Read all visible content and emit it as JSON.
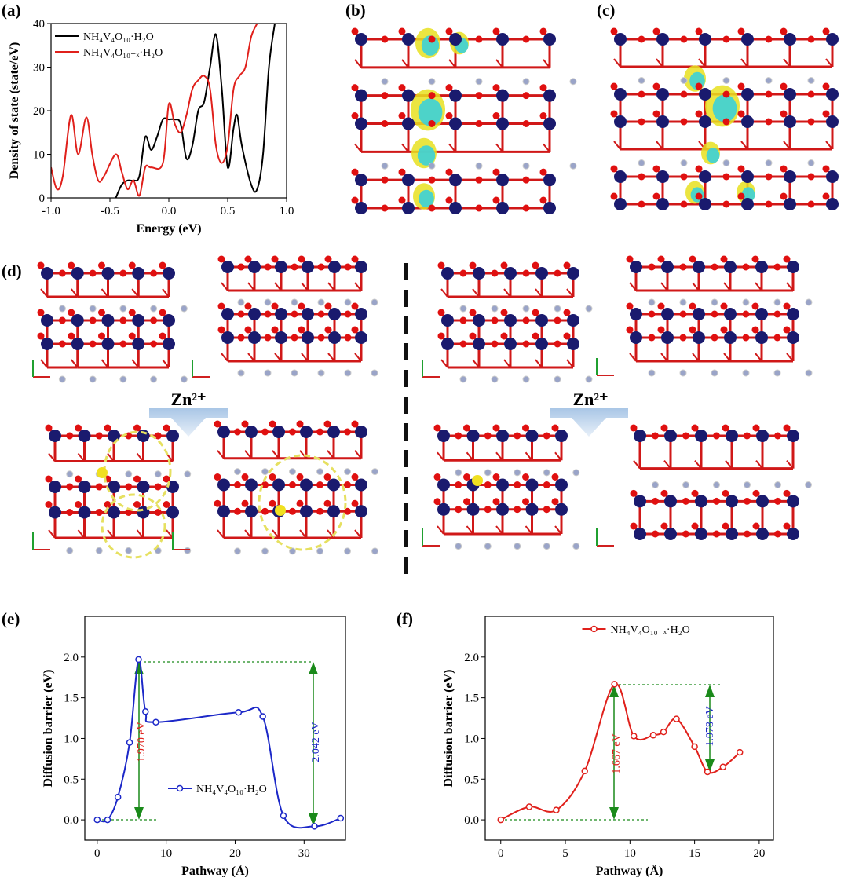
{
  "chart_data": [
    {
      "type": "line",
      "panel": "(a)",
      "xlabel": "Energy (eV)",
      "ylabel": "Density of state (state/eV)",
      "xlim": [
        -1,
        1
      ],
      "ylim": [
        0,
        40
      ],
      "xticks": [
        {
          "value": -1,
          "label": "-1.0"
        },
        {
          "value": -0.5,
          "label": "-0.5"
        },
        {
          "value": 0,
          "label": "0.0"
        },
        {
          "value": 0.5,
          "label": "0.5"
        },
        {
          "value": 1,
          "label": "1.0"
        }
      ],
      "yticks": [
        0,
        10,
        20,
        30,
        40
      ],
      "legend": "upper left",
      "markers": false,
      "series": [
        {
          "name": "NH₄V₄O₁₀·H₂O",
          "color": "#000000",
          "x": [
            -0.45,
            -0.4,
            -0.35,
            -0.3,
            -0.25,
            -0.2,
            -0.15,
            -0.1,
            -0.05,
            0,
            0.05,
            0.1,
            0.15,
            0.2,
            0.25,
            0.3,
            0.35,
            0.4,
            0.45,
            0.5,
            0.55,
            0.58,
            0.62,
            0.7,
            0.75,
            0.8,
            0.85,
            0.9
          ],
          "values": [
            0,
            3,
            4,
            4,
            5,
            14,
            11,
            14,
            18,
            18,
            18,
            17,
            9,
            12,
            20,
            22,
            30,
            37.5,
            25,
            7,
            16,
            19,
            12,
            3,
            2,
            10,
            30,
            40
          ]
        },
        {
          "name": "NH₄V₄O₁₀₋ₓ·H₂O",
          "color": "#e0201b",
          "x": [
            -1,
            -0.95,
            -0.9,
            -0.83,
            -0.77,
            -0.7,
            -0.65,
            -0.6,
            -0.55,
            -0.45,
            -0.4,
            -0.35,
            -0.3,
            -0.25,
            -0.2,
            -0.15,
            -0.05,
            0,
            0.05,
            0.1,
            0.15,
            0.2,
            0.25,
            0.3,
            0.35,
            0.4,
            0.45,
            0.5,
            0.55,
            0.6,
            0.65,
            0.7,
            0.75
          ],
          "values": [
            7,
            2,
            5,
            19,
            10,
            18.5,
            10,
            4,
            5,
            10,
            6,
            2,
            4,
            0.5,
            7,
            7,
            8,
            21.5,
            17,
            15,
            19,
            25,
            27,
            28,
            25,
            12,
            8,
            12,
            25,
            28,
            30,
            37,
            40
          ]
        }
      ]
    },
    {
      "type": "line",
      "panel": "(e)",
      "xlabel": "Pathway (Å)",
      "ylabel": "Diffusion barrier (eV)",
      "xlim": [
        -1.8,
        36
      ],
      "ylim": [
        -0.25,
        2.5
      ],
      "xticks": [
        0,
        10,
        20,
        30
      ],
      "yticks": [
        {
          "value": 0,
          "label": "0.0"
        },
        {
          "value": 0.5,
          "label": "0.5"
        },
        {
          "value": 1,
          "label": "1.0"
        },
        {
          "value": 1.5,
          "label": "1.5"
        },
        {
          "value": 2,
          "label": "2.0"
        }
      ],
      "legend": "lower center",
      "markers": true,
      "annotations": [
        "1.970 eV",
        "2.042 eV"
      ],
      "series": [
        {
          "name": "NH₄V₄O₁₀·H₂O",
          "color": "#1c28c8",
          "x": [
            0,
            1.5,
            3,
            4.7,
            6,
            7,
            8.5,
            20.5,
            24,
            27,
            31.5,
            35.3
          ],
          "values": [
            0,
            0,
            0.28,
            0.95,
            1.97,
            1.33,
            1.2,
            1.32,
            1.27,
            0.05,
            -0.08,
            0.02
          ]
        }
      ]
    },
    {
      "type": "line",
      "panel": "(f)",
      "xlabel": "Pathway (Å)",
      "ylabel": "Diffusion barrier (eV)",
      "xlim": [
        -1.2,
        21.1
      ],
      "ylim": [
        -0.25,
        2.5
      ],
      "xticks": [
        0,
        5,
        10,
        15,
        20
      ],
      "yticks": [
        {
          "value": 0,
          "label": "0.0"
        },
        {
          "value": 0.5,
          "label": "0.5"
        },
        {
          "value": 1,
          "label": "1.0"
        },
        {
          "value": 1.5,
          "label": "1.5"
        },
        {
          "value": 2,
          "label": "2.0"
        }
      ],
      "legend": "upper center",
      "markers": true,
      "annotations": [
        "1.667 eV",
        "1.078 eV"
      ],
      "series": [
        {
          "name": "NH₄V₄O₁₀₋ₓ·H₂O",
          "color": "#e0201b",
          "x": [
            0,
            2.2,
            4.3,
            6.5,
            8.8,
            10.3,
            11.8,
            12.6,
            13.6,
            15,
            16,
            17.2,
            18.5
          ],
          "values": [
            0,
            0.16,
            0.12,
            0.6,
            1.667,
            1.03,
            1.04,
            1.08,
            1.24,
            0.9,
            0.59,
            0.65,
            0.83
          ]
        }
      ]
    }
  ],
  "images": [
    {
      "label": "(b)"
    },
    {
      "label": "(c)"
    },
    {
      "label": "(d)",
      "annotations": [
        "Zn²⁺",
        "Zn²⁺"
      ]
    }
  ]
}
